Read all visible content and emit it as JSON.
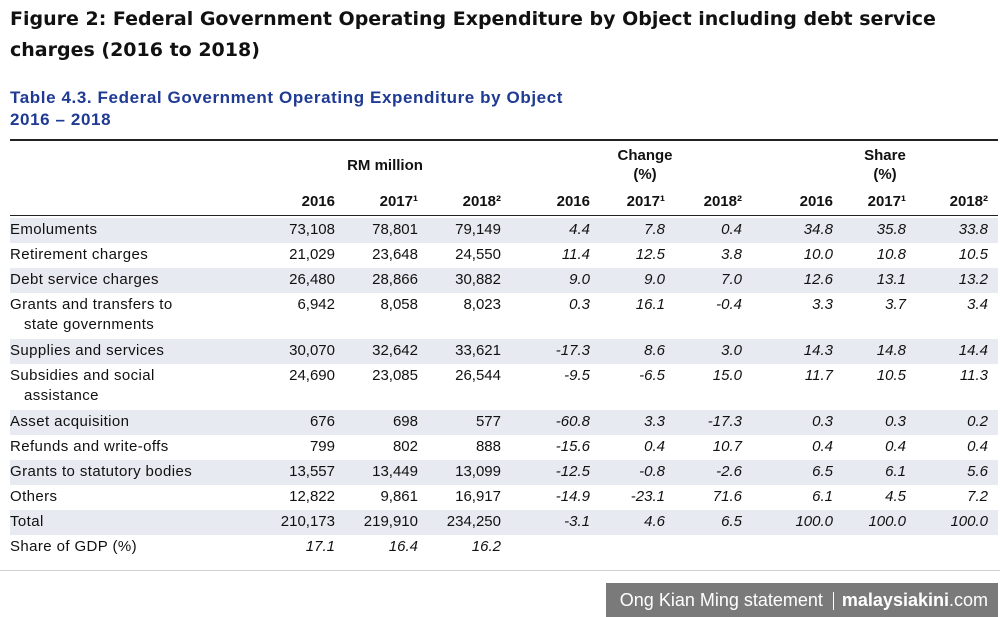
{
  "figure_title": "Figure 2: Federal Government Operating Expenditure by Object including debt service charges (2016 to 2018)",
  "table": {
    "title_line1": "Table 4.3. Federal Government Operating Expenditure by Object",
    "title_line2": "2016 – 2018",
    "groups": {
      "rm": "RM million",
      "change_line1": "Change",
      "change_line2": "(%)",
      "share_line1": "Share",
      "share_line2": "(%)"
    },
    "years": [
      "2016",
      "2017¹",
      "2018²",
      "2016",
      "2017¹",
      "2018²",
      "2016",
      "2017¹",
      "2018²"
    ],
    "rows": [
      {
        "label": "Emoluments",
        "label2": "",
        "values": [
          "73,108",
          "78,801",
          "79,149",
          "4.4",
          "7.8",
          "0.4",
          "34.8",
          "35.8",
          "33.8"
        ]
      },
      {
        "label": "Retirement charges",
        "label2": "",
        "values": [
          "21,029",
          "23,648",
          "24,550",
          "11.4",
          "12.5",
          "3.8",
          "10.0",
          "10.8",
          "10.5"
        ]
      },
      {
        "label": "Debt service charges",
        "label2": "",
        "values": [
          "26,480",
          "28,866",
          "30,882",
          "9.0",
          "9.0",
          "7.0",
          "12.6",
          "13.1",
          "13.2"
        ]
      },
      {
        "label": "Grants and transfers to",
        "label2": "state governments",
        "values": [
          "6,942",
          "8,058",
          "8,023",
          "0.3",
          "16.1",
          "-0.4",
          "3.3",
          "3.7",
          "3.4"
        ]
      },
      {
        "label": "Supplies and services",
        "label2": "",
        "values": [
          "30,070",
          "32,642",
          "33,621",
          "-17.3",
          "8.6",
          "3.0",
          "14.3",
          "14.8",
          "14.4"
        ]
      },
      {
        "label": "Subsidies and social",
        "label2": "assistance",
        "values": [
          "24,690",
          "23,085",
          "26,544",
          "-9.5",
          "-6.5",
          "15.0",
          "11.7",
          "10.5",
          "11.3"
        ]
      },
      {
        "label": "Asset acquisition",
        "label2": "",
        "values": [
          "676",
          "698",
          "577",
          "-60.8",
          "3.3",
          "-17.3",
          "0.3",
          "0.3",
          "0.2"
        ]
      },
      {
        "label": "Refunds and write-offs",
        "label2": "",
        "values": [
          "799",
          "802",
          "888",
          "-15.6",
          "0.4",
          "10.7",
          "0.4",
          "0.4",
          "0.4"
        ]
      },
      {
        "label": "Grants to statutory bodies",
        "label2": "",
        "values": [
          "13,557",
          "13,449",
          "13,099",
          "-12.5",
          "-0.8",
          "-2.6",
          "6.5",
          "6.1",
          "5.6"
        ]
      },
      {
        "label": "Others",
        "label2": "",
        "values": [
          "12,822",
          "9,861",
          "16,917",
          "-14.9",
          "-23.1",
          "71.6",
          "6.1",
          "4.5",
          "7.2"
        ]
      },
      {
        "label": "Total",
        "label2": "",
        "values": [
          "210,173",
          "219,910",
          "234,250",
          "-3.1",
          "4.6",
          "6.5",
          "100.0",
          "100.0",
          "100.0"
        ]
      },
      {
        "label": "Share of GDP (%)",
        "label2": "",
        "values": [
          "17.1",
          "16.4",
          "16.2",
          "",
          "",
          "",
          "",
          "",
          ""
        ]
      }
    ]
  },
  "credit": {
    "statement": "Ong Kian Ming statement",
    "brand": "malaysiakini",
    "tld": ".com"
  }
}
